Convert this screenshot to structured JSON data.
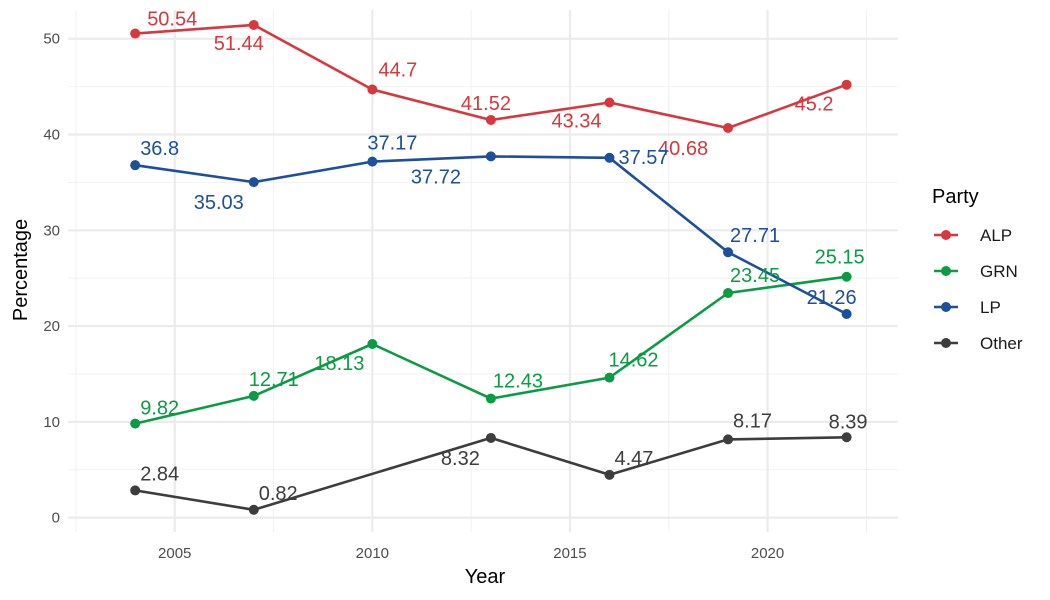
{
  "chart_data": {
    "type": "line",
    "title": "",
    "xlabel": "Year",
    "ylabel": "Percentage",
    "xlim": [
      2002.3,
      2023.3
    ],
    "ylim": [
      -1.5,
      53
    ],
    "x_ticks": [
      2005,
      2010,
      2015,
      2020
    ],
    "x_tick_labels": [
      "2005",
      "2010",
      "2015",
      "2020"
    ],
    "y_ticks": [
      0,
      10,
      20,
      30,
      40,
      50
    ],
    "y_tick_labels": [
      "0",
      "10",
      "20",
      "30",
      "40",
      "50"
    ],
    "grid": true,
    "legend": {
      "title": "Party",
      "position": "right"
    },
    "x": [
      2004,
      2007,
      2010,
      2013,
      2016,
      2019,
      2022
    ],
    "series": [
      {
        "name": "ALP",
        "color": "#d7383d",
        "values": [
          50.54,
          51.44,
          44.7,
          41.52,
          43.34,
          40.68,
          45.2
        ],
        "labels": [
          "50.54",
          "51.44",
          "44.7",
          "41.52",
          "43.34",
          "40.68",
          "45.2"
        ]
      },
      {
        "name": "GRN",
        "color": "#0a9b44",
        "values": [
          9.82,
          12.71,
          18.13,
          12.43,
          14.62,
          23.45,
          25.15
        ],
        "labels": [
          "9.82",
          "12.71",
          "18.13",
          "12.43",
          "14.62",
          "23.45",
          "25.15"
        ]
      },
      {
        "name": "LP",
        "color": "#1c4f9c",
        "values": [
          36.8,
          35.03,
          37.17,
          37.72,
          37.57,
          27.71,
          21.26
        ],
        "labels": [
          "36.8",
          "35.03",
          "37.17",
          "37.72",
          "37.57",
          "27.71",
          "21.26"
        ]
      },
      {
        "name": "Other",
        "color": "#3d3d3d",
        "values": [
          2.84,
          0.82,
          null,
          8.32,
          4.47,
          8.17,
          8.39
        ],
        "labels": [
          "2.84",
          "0.82",
          "",
          "8.32",
          "4.47",
          "8.17",
          "8.39"
        ]
      }
    ]
  }
}
